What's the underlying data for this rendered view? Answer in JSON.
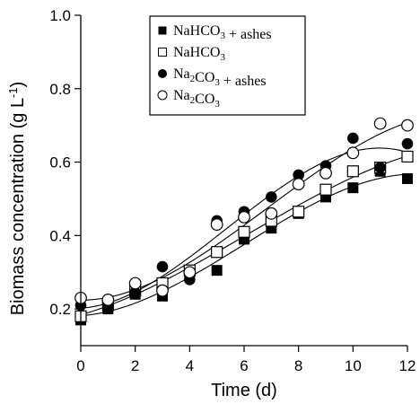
{
  "chart_data": {
    "type": "scatter",
    "xlabel": "Time (d)",
    "ylabel_main": "Biomass concentration (g L",
    "ylabel_sup": "-1",
    "ylabel_tail": ")",
    "xlim": [
      0,
      12
    ],
    "ylim": [
      0.1,
      1.0
    ],
    "xticks": [
      0,
      2,
      4,
      6,
      8,
      10,
      12
    ],
    "yticks": [
      0.2,
      0.4,
      0.6,
      0.8,
      1.0
    ],
    "ytick_labels": [
      "0.2",
      "0.4",
      "0.6",
      "0.8",
      "1.0"
    ],
    "grid": false,
    "legend_position": "top-center",
    "legend": [
      {
        "main": "NaHCO",
        "sub": "3",
        "tail": " + ashes"
      },
      {
        "main": "NaHCO",
        "sub": "3",
        "tail": ""
      },
      {
        "main": "Na",
        "sub": "2",
        "mid": "CO",
        "sub2": "3",
        "tail": " + ashes"
      },
      {
        "main": "Na",
        "sub": "2",
        "mid": "CO",
        "sub2": "3",
        "tail": ""
      }
    ],
    "x": [
      0,
      1,
      2,
      3,
      4,
      5,
      6,
      7,
      8,
      9,
      10,
      11,
      12
    ],
    "series": [
      {
        "marker": "filled-square",
        "values": [
          0.17,
          0.2,
          0.24,
          0.235,
          0.29,
          0.305,
          0.39,
          0.42,
          0.46,
          0.505,
          0.53,
          0.575,
          0.555
        ]
      },
      {
        "marker": "open-square",
        "values": [
          0.18,
          0.21,
          0.25,
          0.27,
          0.305,
          0.355,
          0.41,
          0.44,
          0.465,
          0.525,
          0.575,
          0.585,
          0.615
        ]
      },
      {
        "marker": "filled-circle",
        "values": [
          0.21,
          0.205,
          0.245,
          0.315,
          0.28,
          0.44,
          0.465,
          0.505,
          0.565,
          0.59,
          0.665,
          0.585,
          0.65
        ]
      },
      {
        "marker": "open-circle",
        "values": [
          0.23,
          0.225,
          0.27,
          0.25,
          0.3,
          0.43,
          0.45,
          0.46,
          0.54,
          0.57,
          0.625,
          0.705,
          0.7
        ]
      }
    ],
    "fitted_curves": true
  }
}
